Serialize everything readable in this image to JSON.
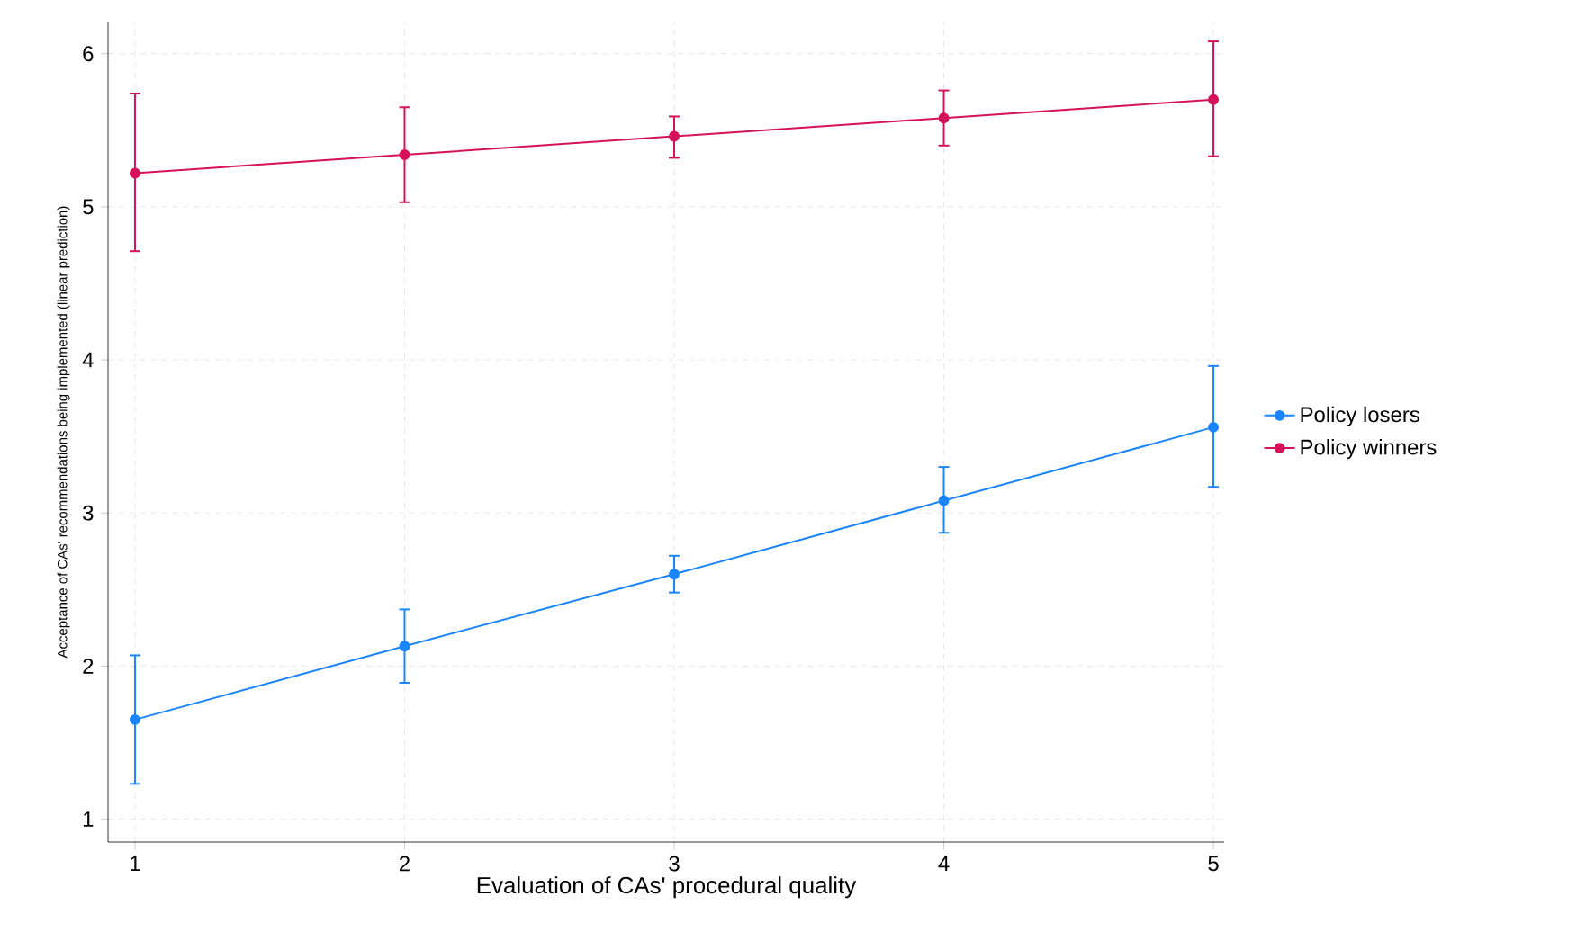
{
  "chart_data": {
    "type": "line",
    "xlabel": "Evaluation of CAs' procedural quality",
    "ylabel": "Acceptance of CAs' recommendations being implemented (linear prediction)",
    "x": [
      1,
      2,
      3,
      4,
      5
    ],
    "xlim": [
      0.9,
      5.04
    ],
    "ylim": [
      0.85,
      6.21
    ],
    "xticks": [
      1,
      2,
      3,
      4,
      5
    ],
    "yticks": [
      1,
      2,
      3,
      4,
      5,
      6
    ],
    "grid": true,
    "legend": "right",
    "marker": "circle",
    "line_style": "solid",
    "series": [
      {
        "name": "Policy losers",
        "color": "#1a85ff",
        "values": [
          1.65,
          2.13,
          2.6,
          3.08,
          3.56
        ],
        "errors": [
          [
            1.23,
            2.07
          ],
          [
            1.89,
            2.37
          ],
          [
            2.48,
            2.72
          ],
          [
            2.87,
            3.3
          ],
          [
            3.17,
            3.96
          ]
        ]
      },
      {
        "name": "Policy winners",
        "color": "#d41159",
        "values": [
          5.22,
          5.34,
          5.46,
          5.58,
          5.7
        ],
        "errors": [
          [
            4.71,
            5.74
          ],
          [
            5.03,
            5.65
          ],
          [
            5.32,
            5.59
          ],
          [
            5.4,
            5.76
          ],
          [
            5.33,
            6.08
          ]
        ]
      }
    ]
  }
}
